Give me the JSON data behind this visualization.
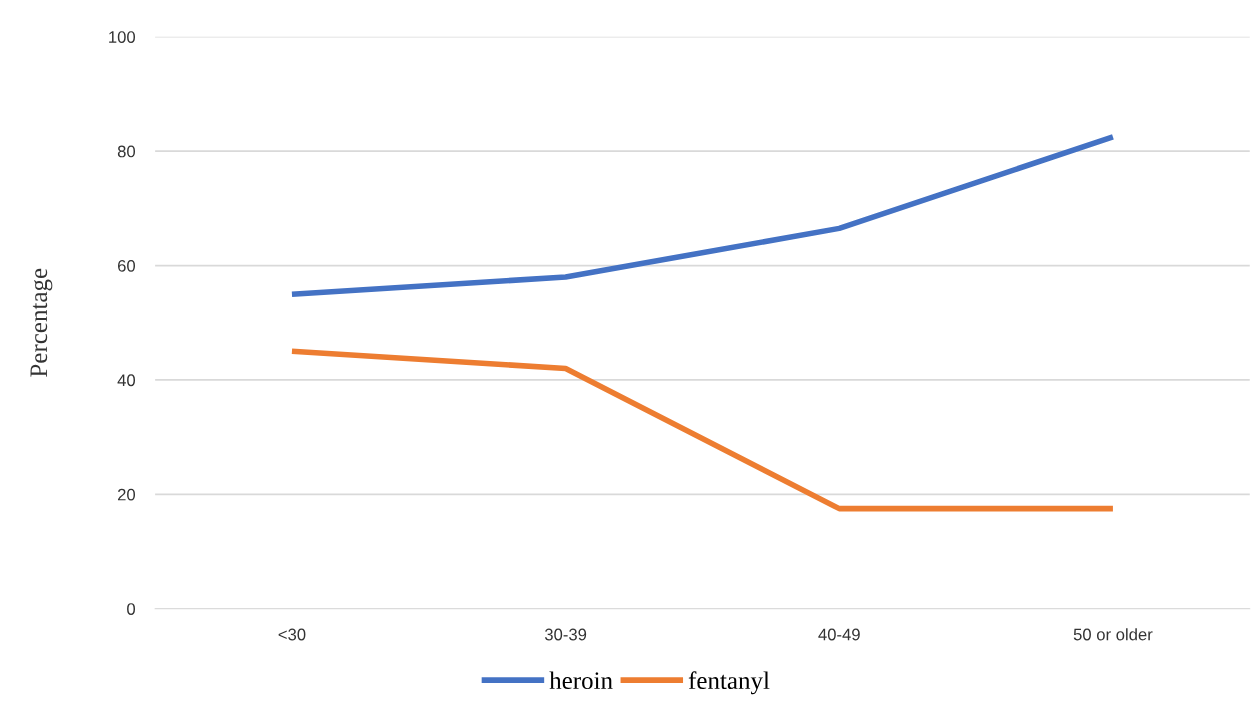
{
  "chart_data": {
    "type": "line",
    "ylabel": "Percentage",
    "categories": [
      "<30",
      "30-39",
      "40-49",
      "50 or older"
    ],
    "series": [
      {
        "name": "heroin",
        "color": "#4472c4",
        "values": [
          55,
          58,
          66.5,
          82.5
        ]
      },
      {
        "name": "fentanyl",
        "color": "#ed7d31",
        "values": [
          45,
          42,
          17.5,
          17.5
        ]
      }
    ],
    "ylim": [
      0,
      100
    ],
    "yticks": [
      0,
      20,
      40,
      60,
      80,
      100
    ],
    "grid": "y",
    "legend": "bottom",
    "marker": "none",
    "line_style": "solid"
  }
}
